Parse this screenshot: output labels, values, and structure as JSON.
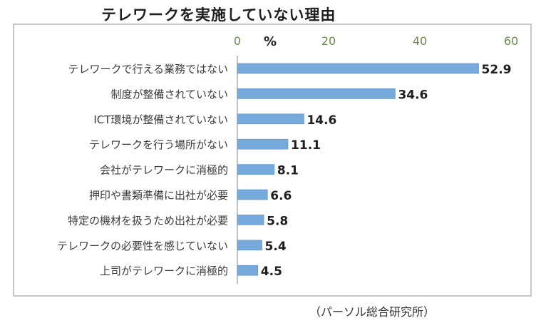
{
  "chart_data": {
    "type": "bar",
    "orientation": "horizontal",
    "title": "テレワークを実施していない理由",
    "unit_label": "%",
    "source": "（パーソル総合研究所）",
    "categories": [
      "テレワークで行える業務ではない",
      "制度が整備されていない",
      "ICT環境が整備されていない",
      "テレワークを行う場所がない",
      "会社がテレワークに消極的",
      "押印や書類準備に出社が必要",
      "特定の機材を扱うため出社が必要",
      "テレワークの必要性を感じていない",
      "上司がテレワークに消極的"
    ],
    "values": [
      52.9,
      34.6,
      14.6,
      11.1,
      8.1,
      6.6,
      5.8,
      5.4,
      4.5
    ],
    "value_labels": [
      "52.9",
      "34.6",
      "14.6",
      "11.1",
      "8.1",
      "6.6",
      "5.8",
      "5.4",
      "4.5"
    ],
    "xlim": [
      0,
      60
    ],
    "xticks": [
      "0",
      "20",
      "40",
      "60"
    ],
    "xtick_values": [
      0,
      20,
      40,
      60
    ],
    "axis_position": "top",
    "grid": false,
    "legend": "none",
    "colors": {
      "bar": "#76a9dc",
      "bar_edge": "#5b8fc4",
      "tick_text": "#6a8a4a",
      "category_text": "#3a3a3a",
      "value_text": "#1f1f1f"
    }
  }
}
